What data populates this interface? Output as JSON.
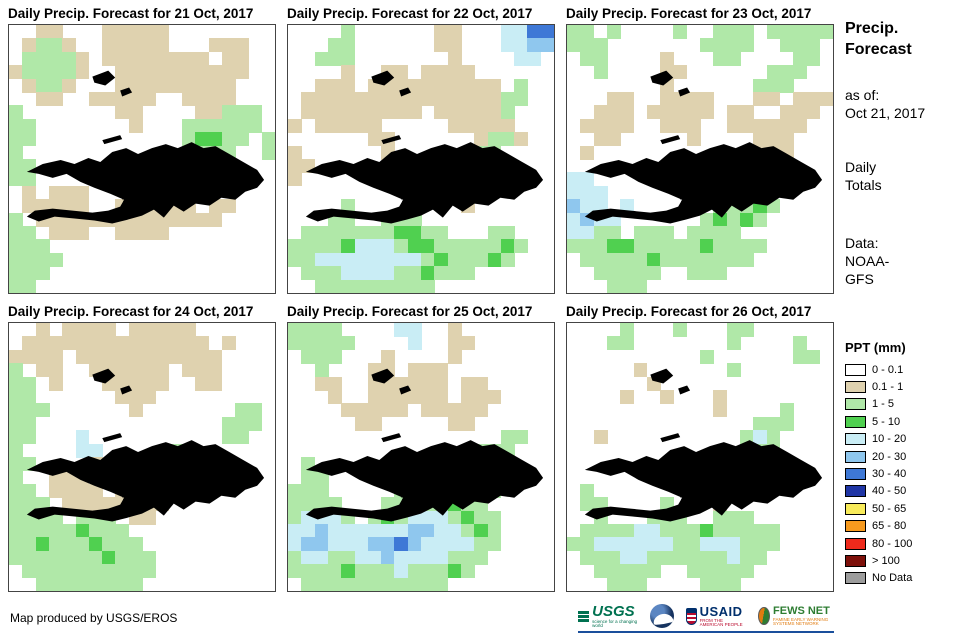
{
  "panels": [
    {
      "title": "Daily Precip. Forecast for 21 Oct, 2017",
      "grid": [
        "..tt...ttttt........",
        ".tggt..ttttt...ttt..",
        ".ggggt.tttttttt.tt..",
        "tggggt..tttttttttt..",
        ".tggt...ttttttttt...",
        "..tt..ttttt..tttt...",
        "g.......tt....ttggg.",
        "gg.......t...gggggg.",
        "gg...........gGGgg.g",
        "g.............ggg..g",
        "gg..................",
        "gg..................",
        ".t.ttt....tttt......",
        ".ttttt..tttttt.tt...",
        "g.tttttttttttttt....",
        "gg.ttt..tttt........",
        "ggg.................",
        "gggg................",
        "ggg.................",
        "gg.................."
      ]
    },
    {
      "title": "Daily Precip. Forecast for 22 Oct, 2017",
      "grid": [
        "....g......tt...ccBB",
        "...gg......tt...ccbb",
        "..ggg.......t....cc.",
        "....t..tt.tttt......",
        "..ttt.tttttttttt.g..",
        ".tttttttttttttttgg..",
        ".ttttttttt.tttttg...",
        "t.ttttt.....ttttt...",
        "......tt......tggt..",
        "t......t......gg....",
        "tt............g.....",
        "t...................",
        "...........tt.......",
        "....g........t......",
        "...gg..ggg..........",
        ".gggggggGGgg...gg...",
        "ggggGcccgGGgggggGg..",
        "ggccccccccgGgggGg...",
        ".gggccccggGggg......",
        "..ggggggggg........."
      ]
    },
    {
      "title": "Daily Precip. Forecast for 23 Oct, 2017",
      "grid": [
        "gg.g....g..ggg.ggggg",
        "ggg.......gggg..ggg.",
        ".gg....t...gg....gg.",
        "..g....tt......ggg..",
        ".......t......ggg...",
        "...tt..tttt...tt.ttt",
        "..ttt.ttttt.tt..ttt.",
        ".tttt..ttt..tttttt..",
        "..tt.....t....ttt...",
        ".t............ttt...",
        "..........t.........",
        "cc.........t........",
        "ccc...........g.....",
        "bcc.c......gggGg....",
        "cbcc......gGgGg.....",
        "ccgg.ggg.gggg.......",
        "gggGGgggggGgggg.....",
        ".gggggGggggggg......",
        "..ggggg..ggg........",
        "...ggg.............."
      ]
    },
    {
      "title": "Daily Precip. Forecast for 24 Oct, 2017",
      "grid": [
        "..t.tttt.ttttt......",
        ".tttttttttttttt.t...",
        "tttt.ttttttttttt....",
        "g.tt..tttttt.ttt....",
        "gg.t...ttttt..tt....",
        "gg......ttt.........",
        "ggg......t.......gg.",
        "gg..............ggg.",
        "gg...c..........gg..",
        "g....cc.....g.......",
        "gg....t.....gg......",
        "g..ttt......g.......",
        "gg.tttt.ttt.........",
        "ggg.tttttttt........",
        "gggg.ggg.tt.........",
        "gggggGggg...........",
        "ggGgggGggg..........",
        "gggggggGggg.........",
        ".gggggggggg.........",
        "..gggggggg.........."
      ]
    },
    {
      "title": "Daily Precip. Forecast for 25 Oct, 2017",
      "grid": [
        "gggg....cc..t.......",
        "ggggg....c..tt......",
        ".ggg...t....t.......",
        "..g...tt.ttt........",
        "..tt..tttttt.tt.....",
        "...t..tttttt.ttt....",
        "....ttttt.ttttt.....",
        ".....tt.....tt......",
        "................gg..",
        "..............ggg...",
        ".g...........gggg...",
        ".gg......g...ggg....",
        "ggg.....ggg.gggg....",
        "gggg...gggggGgg.....",
        "gcccg.gGgcccgGgg....",
        "ccbccccccbbccgGg....",
        "cbbcccbbBbccccgg....",
        "gccggccbccccggg.....",
        "ggggGgggcgggGg......",
        ".ggggggggggg........"
      ]
    },
    {
      "title": "Daily Precip. Forecast for 26 Oct, 2017",
      "grid": [
        "....g...g...gg......",
        "...gg.......g....g..",
        "..........g......gg.",
        ".....t......g.......",
        "......t.............",
        "....t..t...t........",
        "...........t....g...",
        "..............ggg...",
        "..t..........gcg....",
        ".............ggg....",
        "..............g.....",
        "....................",
        ".g........t.........",
        ".gg....g...t........",
        "..g...ggg..ggg......",
        ".ggggccgggGggggg....",
        "ggccccccggcccggg....",
        ".gggccggggggcgg.....",
        "..ggggg..ggggg......",
        "...ggg....ggg......."
      ]
    }
  ],
  "map_colors": {
    ".": "#FFFFFF",
    "t": "#DFD2AF",
    "g": "#B0E8A8",
    "G": "#50D050",
    "c": "#C9EDF5",
    "b": "#8FC7EE",
    "B": "#3E78D6"
  },
  "sidebar": {
    "title_line1": "Precip.",
    "title_line2": "Forecast",
    "as_of_label": "as of:",
    "as_of_date": "Oct 21, 2017",
    "totals_line1": "Daily",
    "totals_line2": "Totals",
    "data_label": "Data:",
    "data_source_line1": "NOAA-",
    "data_source_line2": "GFS"
  },
  "legend": {
    "title": "PPT (mm)",
    "entries": [
      {
        "label": "0 - 0.1",
        "color": "#FFFFFF"
      },
      {
        "label": "0.1 - 1",
        "color": "#DFD2AF"
      },
      {
        "label": "1 - 5",
        "color": "#B0E8A8"
      },
      {
        "label": "5 - 10",
        "color": "#50D050"
      },
      {
        "label": "10 - 20",
        "color": "#C9EDF5"
      },
      {
        "label": "20 - 30",
        "color": "#8FC7EE"
      },
      {
        "label": "30 - 40",
        "color": "#3E78D6"
      },
      {
        "label": "40 - 50",
        "color": "#1F35A5"
      },
      {
        "label": "50 - 65",
        "color": "#F8EB5A"
      },
      {
        "label": "65 - 80",
        "color": "#F79A1E"
      },
      {
        "label": "80 - 100",
        "color": "#EE2A1C"
      },
      {
        "label": "> 100",
        "color": "#7D100A"
      },
      {
        "label": "No Data",
        "color": "#9C9C9C"
      }
    ]
  },
  "footer": {
    "credit": "Map produced by USGS/EROS",
    "usgs_text": "USGS",
    "usgs_tagline": "science for a changing world",
    "usaid_text": "USAID",
    "usaid_tagline": "FROM THE AMERICAN PEOPLE",
    "fews_text": "FEWS NET",
    "fews_tagline": "FAMINE EARLY WARNING SYSTEMS NETWORK"
  }
}
